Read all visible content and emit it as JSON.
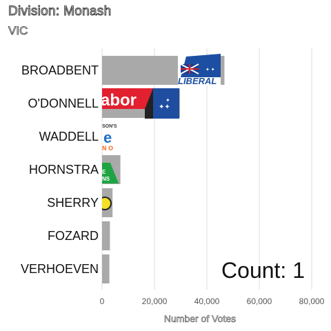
{
  "chart_data": {
    "type": "bar",
    "orientation": "horizontal",
    "title": "Division: Monash",
    "subtitle": "VIC",
    "xlabel": "Number of Votes",
    "ylabel": "",
    "xlim": [
      0,
      80000
    ],
    "ticks": [
      0,
      20000,
      40000,
      60000,
      80000
    ],
    "tick_labels": [
      "0",
      "20,000",
      "40,000",
      "60,000",
      "80,000"
    ],
    "grid": true,
    "bar_color": "#a9a9a9",
    "categories": [
      "BROADBENT",
      "O'DONNELL",
      "WADDELL",
      "HORNSTRA",
      "SHERRY",
      "FOZARD",
      "VERHOEVEN"
    ],
    "values": [
      46700,
      29700,
      7700,
      7000,
      4000,
      3000,
      2800
    ],
    "logos": [
      "liberal-logo",
      "labor-logo",
      "one-nation-logo",
      "greens-logo",
      "party-badge-logo",
      "",
      ""
    ],
    "annotation": "Count:  1"
  }
}
